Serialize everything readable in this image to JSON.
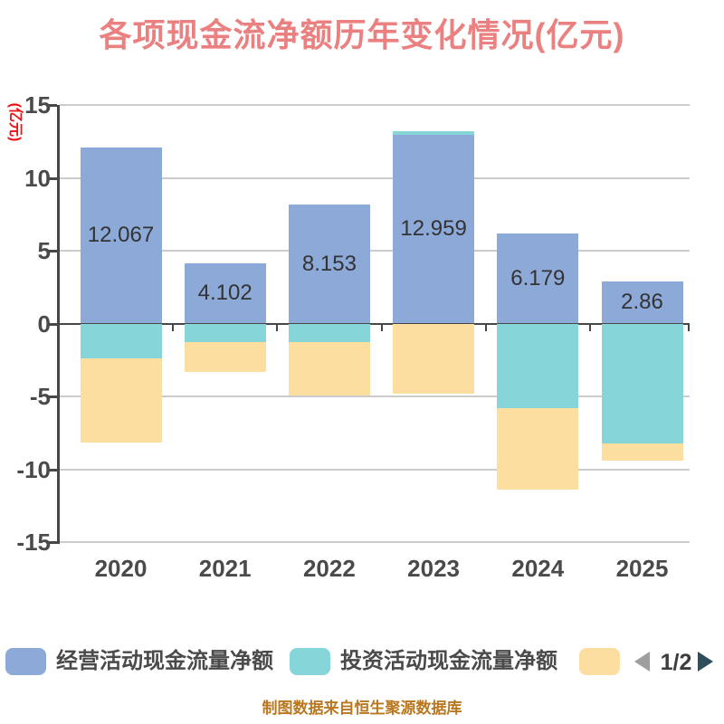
{
  "header": {
    "title": "各项现金流净额历年变化情况(亿元)"
  },
  "chart_data": {
    "type": "bar",
    "stacked": true,
    "title": "各项现金流净额历年变化情况(亿元)",
    "xlabel": "",
    "ylabel": "(亿元)",
    "ylim": [
      -15,
      15
    ],
    "ytick_interval": 5,
    "y_ticks": [
      15,
      10,
      5,
      0,
      -5,
      -10,
      -15
    ],
    "grid": true,
    "legend_position": "bottom",
    "categories": [
      "2020",
      "2021",
      "2022",
      "2023",
      "2024",
      "2025"
    ],
    "series": [
      {
        "name": "经营活动现金流量净额",
        "color": "#8CA9D8",
        "values": [
          12.067,
          4.102,
          8.153,
          12.959,
          6.179,
          2.86
        ]
      },
      {
        "name": "投资活动现金流量净额",
        "color": "#86D5D8",
        "values": [
          -2.4,
          -1.3,
          -1.25,
          0.25,
          -5.8,
          -8.2
        ]
      },
      {
        "name": "",
        "color": "#FCDEA0",
        "values": [
          -5.75,
          -2.0,
          -3.7,
          -4.8,
          -5.6,
          -1.2
        ]
      }
    ],
    "bar_labels": [
      "12.067",
      "4.102",
      "8.153",
      "12.959",
      "6.179",
      "2.86"
    ]
  },
  "legend": {
    "items": [
      {
        "label": "经营活动现金流量净额",
        "color": "#8CA9D8"
      },
      {
        "label": "投资活动现金流量净额",
        "color": "#86D5D8"
      },
      {
        "label": "",
        "color": "#FCDEA0"
      }
    ],
    "pagination": {
      "current": "1/2",
      "prev_color": "#9E9E9E",
      "next_color": "#2F4F5F"
    }
  },
  "footer": {
    "source_text": "制图数据来自恒生聚源数据库"
  },
  "colors": {
    "title": "#EA8080",
    "ylabel": "#EE1111",
    "axis_dark": "#474747",
    "gridline": "#CCCCCC",
    "tick_label": "#4A4A4A",
    "value_label": "#333333",
    "footer_text": "#B9771F"
  }
}
